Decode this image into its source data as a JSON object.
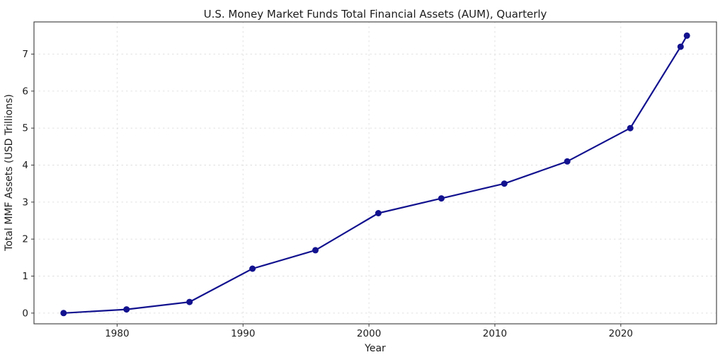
{
  "chart_data": {
    "type": "line",
    "title": "U.S. Money Market Funds Total Financial Assets (AUM), Quarterly",
    "xlabel": "Year",
    "ylabel": "Total MMF Assets (USD Trillions)",
    "series": [
      {
        "name": "Total MMF Assets",
        "x": [
          1975.75,
          1980.75,
          1985.75,
          1990.75,
          1995.75,
          2000.75,
          2005.75,
          2010.75,
          2015.75,
          2020.75,
          2024.75,
          2025.25
        ],
        "y": [
          0.0,
          0.1,
          0.3,
          1.2,
          1.7,
          2.7,
          3.1,
          3.5,
          4.1,
          5.0,
          7.2,
          7.5
        ],
        "color": "#12128f",
        "marker": "circle",
        "line_width": 2.2,
        "marker_radius": 4.5
      }
    ],
    "x_ticks": [
      1980,
      1990,
      2000,
      2010,
      2020
    ],
    "y_ticks": [
      0,
      1,
      2,
      3,
      4,
      5,
      6,
      7
    ],
    "xlim": [
      1973.4,
      2027.6
    ],
    "ylim": [
      -0.29,
      7.87
    ],
    "grid": {
      "visible": true,
      "style": "dashed",
      "color": "#dedede"
    },
    "legend": "none",
    "colors": {
      "spine": "#3a3a3a",
      "tick": "#3a3a3a",
      "text": "#1c1c1c",
      "background": "#ffffff"
    }
  }
}
